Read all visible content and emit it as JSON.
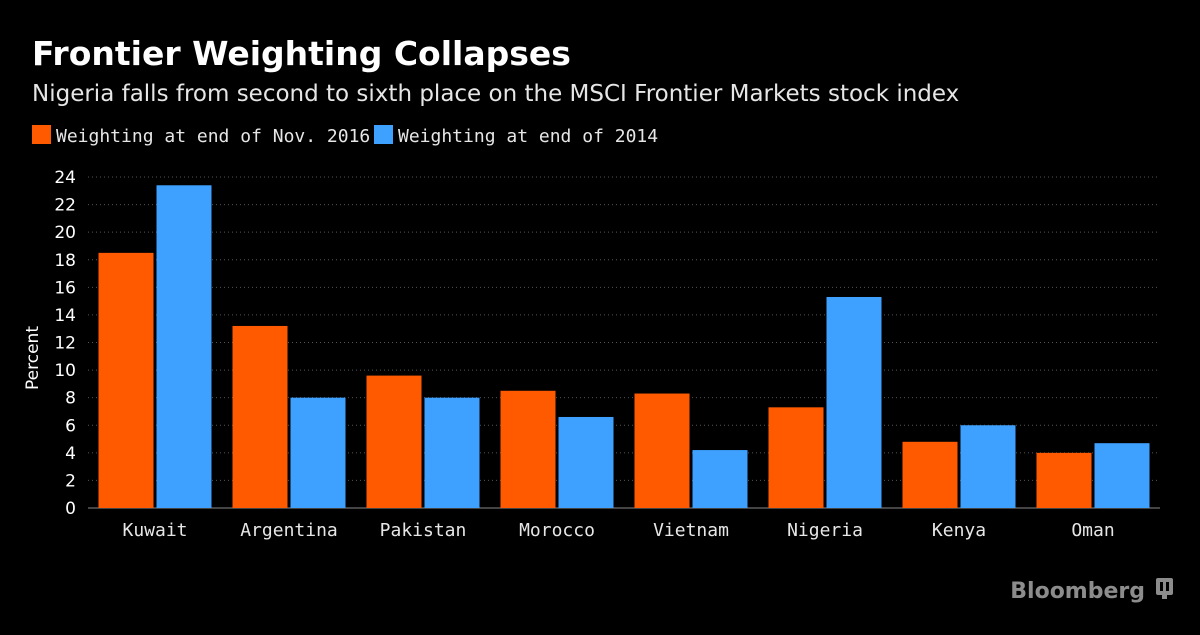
{
  "chart_data": {
    "type": "bar",
    "title": "Frontier Weighting Collapses",
    "subtitle": "Nigeria falls from second to sixth place on the MSCI Frontier Markets stock index",
    "ylabel": "Percent",
    "xlabel": "",
    "ylim": [
      0,
      24
    ],
    "yticks": [
      0,
      2,
      4,
      6,
      8,
      10,
      12,
      14,
      16,
      18,
      20,
      22,
      24
    ],
    "grid": true,
    "legend_position": "top-left",
    "categories": [
      "Kuwait",
      "Argentina",
      "Pakistan",
      "Morocco",
      "Vietnam",
      "Nigeria",
      "Kenya",
      "Oman"
    ],
    "series": [
      {
        "name": "Weighting at end of Nov. 2016",
        "color": "#ff5a00",
        "values": [
          18.5,
          13.2,
          9.6,
          8.5,
          8.3,
          7.3,
          4.8,
          4.0
        ]
      },
      {
        "name": "Weighting at end of 2014",
        "color": "#3ea1ff",
        "values": [
          23.4,
          8.0,
          8.0,
          6.6,
          4.2,
          15.3,
          6.0,
          4.7
        ]
      }
    ],
    "source": "Bloomberg"
  }
}
